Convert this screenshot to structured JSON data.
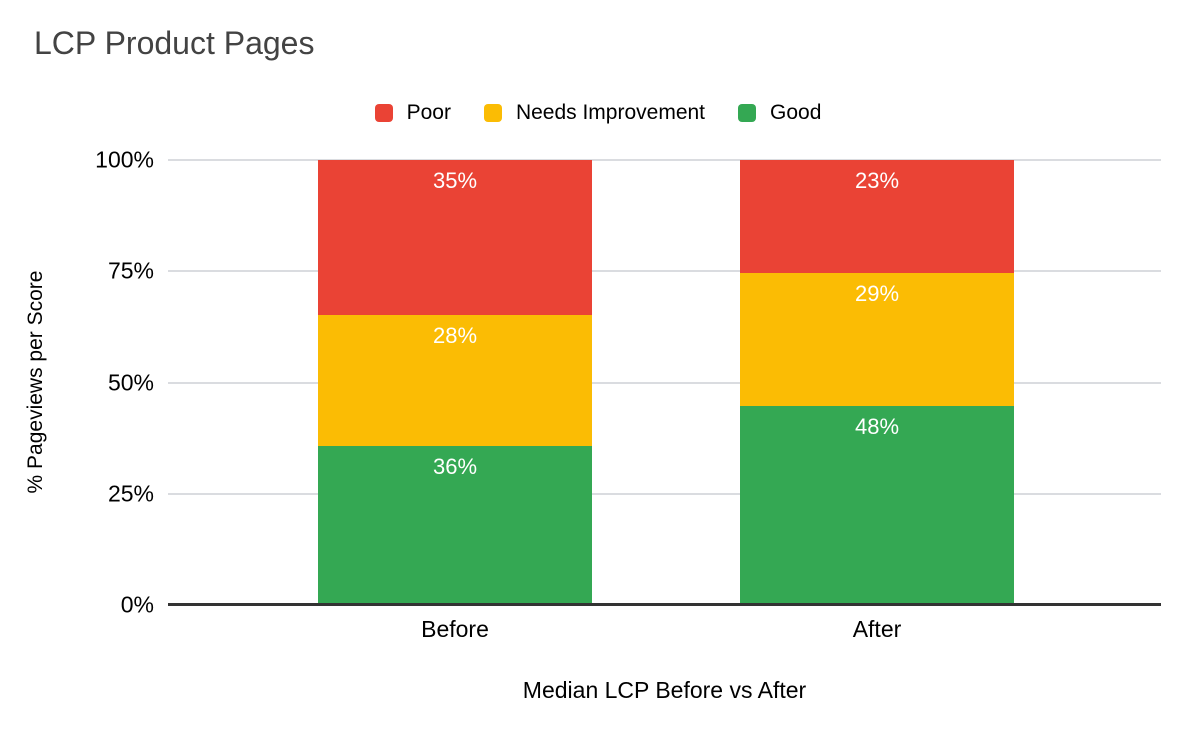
{
  "chart_data": {
    "type": "bar",
    "subtype": "stacked-100-percent-vertical",
    "title": "LCP Product Pages",
    "categories": [
      "Before",
      "After"
    ],
    "series": [
      {
        "name": "Poor",
        "color": "#EA4335",
        "values": [
          35,
          23
        ]
      },
      {
        "name": "Needs Improvement",
        "color": "#FBBC04",
        "values": [
          28,
          29
        ]
      },
      {
        "name": "Good",
        "color": "#34A853",
        "values": [
          36,
          48
        ]
      }
    ],
    "value_label_suffix": "%",
    "xlabel": "Median LCP Before vs After",
    "ylabel": "% Pageviews per Score",
    "y_ticks": [
      {
        "label": "0%",
        "value": 0
      },
      {
        "label": "25%",
        "value": 25
      },
      {
        "label": "50%",
        "value": 50
      },
      {
        "label": "75%",
        "value": 75
      },
      {
        "label": "100%",
        "value": 100
      }
    ],
    "ylim": [
      0,
      100
    ],
    "grid": true,
    "legend_position": "top",
    "colors": {
      "background": "#FFFFFF",
      "title_text": "#434343",
      "axis_text": "#000000",
      "bar_label_text": "#FFFFFF",
      "gridline": "#DADCE0",
      "baseline": "#333333"
    }
  }
}
